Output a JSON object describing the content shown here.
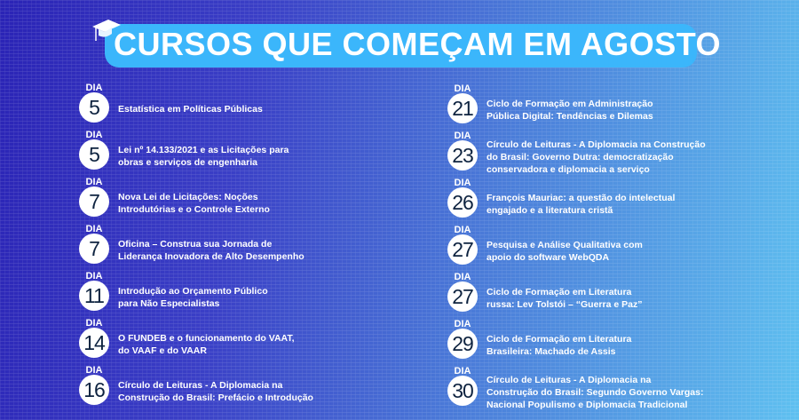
{
  "title": "CURSOS QUE COMEÇAM EM AGOSTO",
  "title_icon": "graduation-cap-icon",
  "colors": {
    "pill": "#3bb6fb",
    "circle": "#ffffff",
    "number": "#0e2340",
    "bg_left": "#2a23b5",
    "bg_right": "#5fc0f0"
  },
  "left": [
    {
      "label": "DIA",
      "day": "5",
      "course": "Estatística em Políticas Públicas"
    },
    {
      "label": "DIA",
      "day": "5",
      "course": "Lei nº 14.133/2021 e as Licitações para\nobras e serviços de engenharia"
    },
    {
      "label": "DIA",
      "day": "7",
      "course": "Nova Lei de Licitações: Noções\nIntrodutórias e o Controle Externo"
    },
    {
      "label": "DIA",
      "day": "7",
      "course": "Oficina – Construa sua Jornada de\nLiderança Inovadora de Alto Desempenho"
    },
    {
      "label": "DIA",
      "day": "11",
      "course": "Introdução ao Orçamento Público\npara Não Especialistas"
    },
    {
      "label": "DIA",
      "day": "14",
      "course": "O FUNDEB e o funcionamento do VAAT,\ndo VAAF e do VAAR"
    },
    {
      "label": "DIA",
      "day": "16",
      "course": "Círculo de Leituras - A Diplomacia na\nConstrução do Brasil: Prefácio e Introdução"
    }
  ],
  "right": [
    {
      "label": "DIA",
      "day": "21",
      "course": "Ciclo de Formação em Administração\nPública Digital: Tendências e Dilemas"
    },
    {
      "label": "DIA",
      "day": "23",
      "course": "Círculo de Leituras - A Diplomacia na Construção\ndo Brasil: Governo Dutra: democratização\nconservadora e diplomacia a serviço"
    },
    {
      "label": "DIA",
      "day": "26",
      "course": "François Mauriac: a questão do intelectual\nengajado e a literatura cristã"
    },
    {
      "label": "DIA",
      "day": "27",
      "course": "Pesquisa e Análise Qualitativa com\napoio do software WebQDA"
    },
    {
      "label": "DIA",
      "day": "27",
      "course": "Ciclo de Formação em Literatura\nrussa: Lev Tolstói – “Guerra e Paz”"
    },
    {
      "label": "DIA",
      "day": "29",
      "course": "Ciclo de Formação em Literatura\nBrasileira: Machado de Assis"
    },
    {
      "label": "DIA",
      "day": "30",
      "course": "Círculo de Leituras - A Diplomacia na\nConstrução do Brasil: Segundo Governo Vargas:\nNacional Populismo e Diplomacia Tradicional"
    }
  ]
}
